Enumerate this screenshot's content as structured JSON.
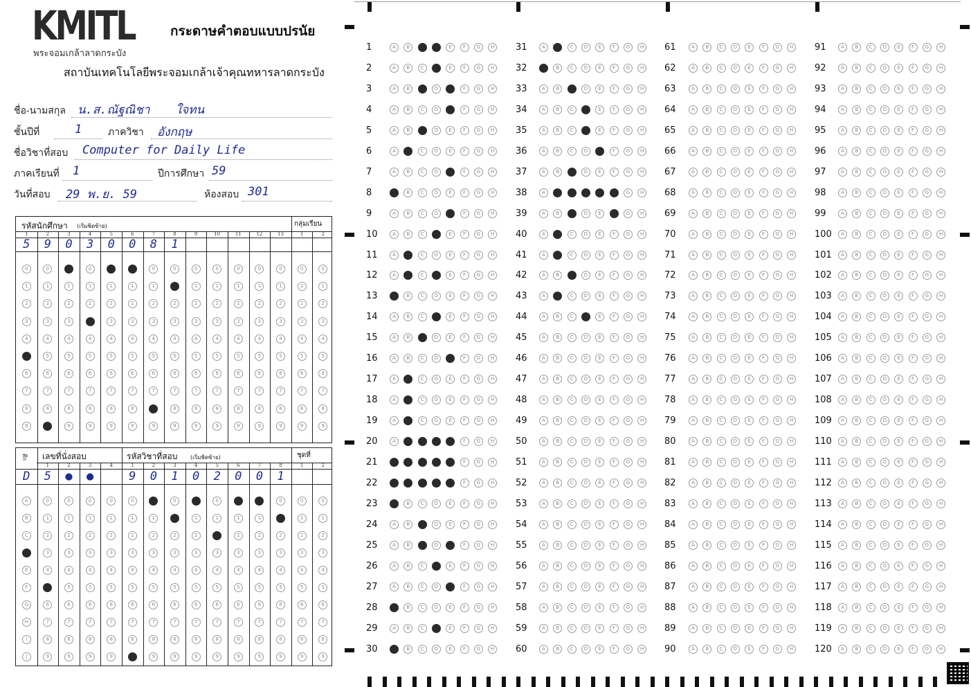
{
  "header": {
    "logo": "KMITL",
    "logo_sub": "พระจอมเกล้าลาดกระบัง",
    "title": "กระดาษคำตอบแบบปรนัย",
    "institute": "สถาบันเทคโนโลยีพระจอมเกล้าเจ้าคุณทหารลาดกระบัง"
  },
  "fields": {
    "name_label": "ชื่อ-นามสกุล",
    "name_value": "น.ส.ณัฐณิชา",
    "surname_value": "ใจทน",
    "year_label": "ชั้นปีที่",
    "year_value": "1",
    "dept_label": "ภาควิชา",
    "dept_value": "อังกฤษ",
    "subject_label": "ชื่อวิชาที่สอบ",
    "subject_value": "Computer for Daily Life",
    "semester_label": "ภาคเรียนที่",
    "semester_value": "1",
    "academic_year_label": "ปีการศึกษา",
    "academic_year_value": "59",
    "date_label": "วันที่สอบ",
    "date_value": "29 พ.ย. 59",
    "room_label": "ห้องสอบ",
    "room_value": "301"
  },
  "student_grid": {
    "title": "รหัสนักศึกษา",
    "title_note": "(เริ่มชิดซ้าย)",
    "group_title": "กลุ่มเรียน",
    "columns": [
      "1",
      "2",
      "3",
      "4",
      "5",
      "6",
      "7",
      "8",
      "9",
      "10",
      "11",
      "12",
      "13"
    ],
    "group_columns": [
      "1",
      "2"
    ],
    "written": [
      "5",
      "9",
      "0",
      "3",
      "0",
      "0",
      "8",
      "1",
      "",
      "",
      "",
      "",
      ""
    ],
    "filled": [
      5,
      9,
      0,
      3,
      0,
      0,
      8,
      1,
      null,
      null,
      null,
      null,
      null
    ],
    "group_filled": [
      null,
      null
    ],
    "row_labels": [
      "0",
      "1",
      "2",
      "3",
      "4",
      "5",
      "6",
      "7",
      "8",
      "9"
    ]
  },
  "seat_grid": {
    "series_title": "ตึก",
    "seat_title": "เลขที่นั่งสอบ",
    "subject_code_title": "รหัสวิชาที่สอบ",
    "subject_code_note": "(เริ่มชิดซ้าย)",
    "set_title": "ชุดที่",
    "seat_columns": [
      "1",
      "2",
      "3",
      "4"
    ],
    "subject_columns": [
      "1",
      "2",
      "3",
      "4",
      "5",
      "6",
      "7",
      "8"
    ],
    "set_columns": [
      "1",
      "2"
    ],
    "written_series": "D",
    "written_seat": [
      "5",
      "●",
      "●",
      ""
    ],
    "written_subject": [
      "9",
      "0",
      "1",
      "0",
      "2",
      "0",
      "0",
      "1"
    ],
    "series_labels": [
      "A",
      "B",
      "C",
      "D",
      "E",
      "F",
      "G",
      "H",
      "I",
      "J"
    ],
    "digit_labels": [
      "0",
      "1",
      "2",
      "3",
      "4",
      "5",
      "6",
      "7",
      "8",
      "9"
    ],
    "series_filled": 3,
    "seat_filled": [
      5,
      null,
      null,
      null
    ],
    "subject_filled": [
      9,
      0,
      1,
      0,
      2,
      0,
      0,
      1
    ],
    "set_filled": [
      null,
      null
    ]
  },
  "answers": {
    "options": [
      "A",
      "B",
      "C",
      "D",
      "E",
      "F",
      "G",
      "H"
    ],
    "filled": {
      "1": [
        2,
        3
      ],
      "2": [
        3
      ],
      "3": [
        2,
        4
      ],
      "4": [
        4
      ],
      "5": [
        2
      ],
      "6": [
        1
      ],
      "7": [
        4
      ],
      "8": [
        0
      ],
      "9": [
        4
      ],
      "10": [
        3
      ],
      "11": [
        1
      ],
      "12": [
        1,
        3
      ],
      "13": [
        0
      ],
      "14": [
        3
      ],
      "15": [
        2
      ],
      "16": [
        4
      ],
      "17": [
        1
      ],
      "18": [
        1
      ],
      "19": [
        1
      ],
      "20": [
        1,
        2,
        3,
        4
      ],
      "21": [
        0,
        1,
        2,
        3,
        4
      ],
      "22": [
        0,
        1,
        2,
        3,
        4
      ],
      "23": [
        0
      ],
      "24": [
        2
      ],
      "25": [
        2,
        4
      ],
      "26": [
        3
      ],
      "27": [
        4
      ],
      "28": [
        0
      ],
      "29": [
        3
      ],
      "30": [
        0
      ],
      "31": [
        1
      ],
      "32": [
        0
      ],
      "33": [
        2
      ],
      "34": [
        3
      ],
      "35": [
        3
      ],
      "36": [
        4
      ],
      "37": [
        2
      ],
      "38": [
        1,
        2,
        3,
        4,
        5
      ],
      "39": [
        2,
        5
      ],
      "40": [
        1
      ],
      "41": [
        1
      ],
      "42": [
        2
      ],
      "43": [
        1
      ],
      "44": [
        3
      ]
    }
  }
}
